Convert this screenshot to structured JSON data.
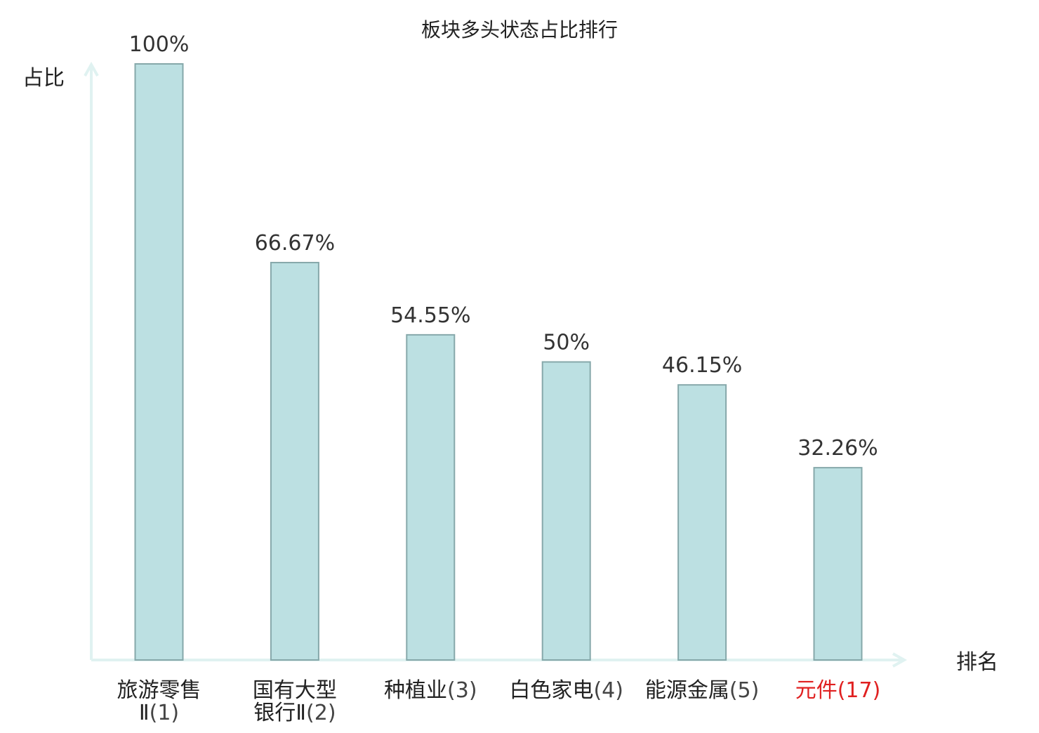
{
  "chart_data": {
    "type": "bar",
    "title": "板块多头状态占比排行",
    "ylabel": "占比",
    "xlabel": "排名",
    "ylim": [
      0,
      100
    ],
    "unit": "%",
    "grid": false,
    "categories": [
      {
        "name": [
          "旅游零售",
          "Ⅱ"
        ],
        "rank": "(1)",
        "highlight": false
      },
      {
        "name": [
          "国有大型",
          "银行Ⅱ"
        ],
        "rank": "(2)",
        "highlight": false
      },
      {
        "name": [
          "种植业"
        ],
        "rank": "(3)",
        "highlight": false
      },
      {
        "name": [
          "白色家电"
        ],
        "rank": "(4)",
        "highlight": false
      },
      {
        "name": [
          "能源金属"
        ],
        "rank": "(5)",
        "highlight": false
      },
      {
        "name": [
          "元件"
        ],
        "rank": "(17)",
        "highlight": true
      }
    ],
    "values": [
      100,
      66.67,
      54.55,
      50,
      46.15,
      32.26
    ],
    "value_labels": [
      "100%",
      "66.67%",
      "54.55%",
      "50%",
      "46.15%",
      "32.26%"
    ]
  },
  "colors": {
    "bar_fill": "#bce0e2",
    "bar_stroke": "#86a8aa",
    "axis": "#e0f2f1",
    "text": "#222222",
    "rank_text": "#444444",
    "highlight": "#e02020"
  }
}
